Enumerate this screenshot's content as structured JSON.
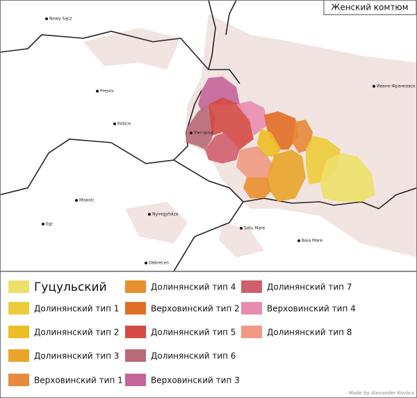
{
  "title": "Женский комтюм",
  "cities": [
    "Nowy Sącz",
    "Presov",
    "Košice",
    "Ужгород",
    "Miskolc",
    "Nyiregyháza",
    "Egr",
    "Satu Mare",
    "Baia Mare",
    "Debrecen",
    "Ивано-Франковск"
  ],
  "legend": [
    {
      "name": "Гуцульский",
      "color": "#ede06a"
    },
    {
      "name": "Долинянский тип 1",
      "color": "#edcb3b"
    },
    {
      "name": "Долинянский тип 2",
      "color": "#ecbe25"
    },
    {
      "name": "Долинянский тип 3",
      "color": "#e9a42b"
    },
    {
      "name": "Верховинский тип 1",
      "color": "#e78a3b"
    },
    {
      "name": "Долинянский тип 4",
      "color": "#e88f2f"
    },
    {
      "name": "Верховинский тип 2",
      "color": "#e06d24"
    },
    {
      "name": "Долинянский тип 5",
      "color": "#d54a45"
    },
    {
      "name": "Долинянский тип 6",
      "color": "#b86a78"
    },
    {
      "name": "Верховинский тип 3",
      "color": "#c4659a"
    },
    {
      "name": "Долинянский тип 7",
      "color": "#d05f6e"
    },
    {
      "name": "Верховинский тип 4",
      "color": "#e88cb0"
    },
    {
      "name": "Долинянский тип 8",
      "color": "#ee9a82"
    }
  ],
  "credit": "Made by Alexander Kovács"
}
